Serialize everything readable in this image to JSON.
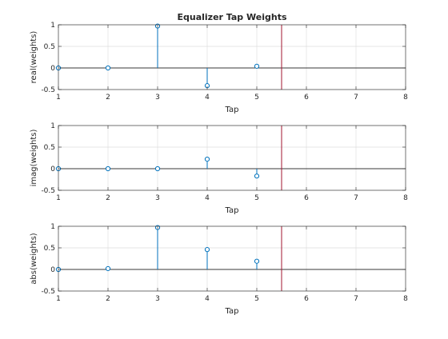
{
  "figure": {
    "title": "Equalizer Tap Weights"
  },
  "chart_data": [
    {
      "type": "stem",
      "xlabel": "Tap",
      "ylabel": "real(weights)",
      "xlim": [
        1,
        8
      ],
      "ylim": [
        -0.5,
        1
      ],
      "x_ticks": [
        1,
        2,
        3,
        4,
        5,
        6,
        7,
        8
      ],
      "y_ticks": [
        -0.5,
        0,
        0.5,
        1
      ],
      "y_tick_labels": [
        "-0.5",
        "0",
        "0.5",
        "1"
      ],
      "grid": true,
      "x": [
        1,
        2,
        3,
        4,
        5
      ],
      "values": [
        0.0,
        0.0,
        0.97,
        -0.41,
        0.04
      ],
      "vertical_line_x": 5.5,
      "colors": {
        "stem": "#0072BD",
        "vline": "#A2142F",
        "zero": "#000000"
      }
    },
    {
      "type": "stem",
      "xlabel": "Tap",
      "ylabel": "imag(weights)",
      "xlim": [
        1,
        8
      ],
      "ylim": [
        -0.5,
        1
      ],
      "x_ticks": [
        1,
        2,
        3,
        4,
        5,
        6,
        7,
        8
      ],
      "y_ticks": [
        -0.5,
        0,
        0.5,
        1
      ],
      "y_tick_labels": [
        "-0.5",
        "0",
        "0.5",
        "1"
      ],
      "grid": true,
      "x": [
        1,
        2,
        3,
        4,
        5
      ],
      "values": [
        0.0,
        0.0,
        0.0,
        0.22,
        -0.17
      ],
      "vertical_line_x": 5.5,
      "colors": {
        "stem": "#0072BD",
        "vline": "#A2142F",
        "zero": "#000000"
      }
    },
    {
      "type": "stem",
      "xlabel": "Tap",
      "ylabel": "abs(weights)",
      "xlim": [
        1,
        8
      ],
      "ylim": [
        -0.5,
        1
      ],
      "x_ticks": [
        1,
        2,
        3,
        4,
        5,
        6,
        7,
        8
      ],
      "y_ticks": [
        -0.5,
        0,
        0.5,
        1
      ],
      "y_tick_labels": [
        "-0.5",
        "0",
        "0.5",
        "1"
      ],
      "grid": true,
      "x": [
        1,
        2,
        3,
        4,
        5
      ],
      "values": [
        0.0,
        0.02,
        0.97,
        0.46,
        0.19
      ],
      "vertical_line_x": 5.5,
      "colors": {
        "stem": "#0072BD",
        "vline": "#A2142F",
        "zero": "#000000"
      }
    }
  ]
}
